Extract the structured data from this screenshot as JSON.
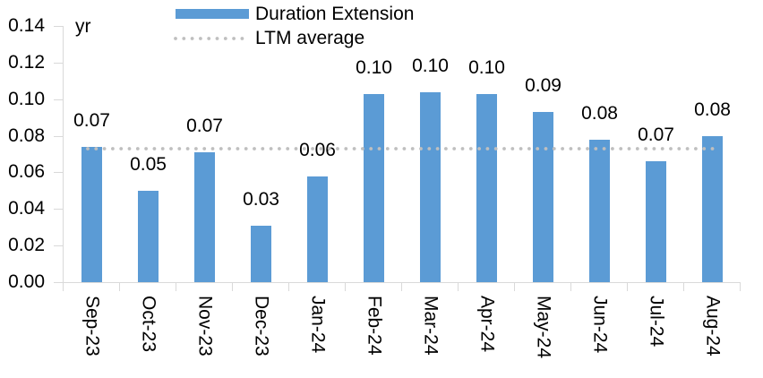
{
  "colors": {
    "bar_blue": "#5B9BD5",
    "dotted_gray": "#BFBFBF",
    "axis_gray": "#D9D9D9",
    "text": "#000000",
    "background": "#FFFFFF"
  },
  "chart_data": {
    "type": "bar",
    "title": "",
    "unit_label": "yr",
    "categories": [
      "Sep-23",
      "Oct-23",
      "Nov-23",
      "Dec-23",
      "Jan-24",
      "Feb-24",
      "Mar-24",
      "Apr-24",
      "May-24",
      "Jun-24",
      "Jul-24",
      "Aug-24"
    ],
    "series": [
      {
        "name": "Duration Extension",
        "type": "bar",
        "color": "#5B9BD5",
        "values": [
          0.074,
          0.05,
          0.071,
          0.031,
          0.058,
          0.103,
          0.104,
          0.103,
          0.093,
          0.078,
          0.066,
          0.08
        ],
        "data_labels": [
          "0.07",
          "0.05",
          "0.07",
          "0.03",
          "0.06",
          "0.10",
          "0.10",
          "0.10",
          "0.09",
          "0.08",
          "0.07",
          "0.08"
        ]
      },
      {
        "name": "LTM average",
        "type": "dotted-line",
        "color": "#BFBFBF",
        "value": 0.073
      }
    ],
    "y_axis": {
      "tick_labels": [
        "0.00",
        "0.02",
        "0.04",
        "0.06",
        "0.08",
        "0.10",
        "0.12",
        "0.14"
      ],
      "ylim": [
        0,
        0.14
      ],
      "grid": false
    },
    "legend_position": "top"
  }
}
